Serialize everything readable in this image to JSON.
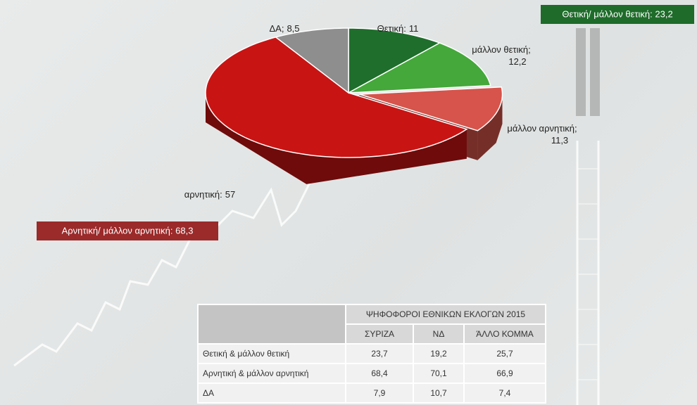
{
  "chart_data": {
    "type": "pie3d",
    "categories": [
      "Θετική:",
      "μάλλον θετική;",
      "μάλλον αρνητική;",
      "αρνητική:",
      "ΔΑ;"
    ],
    "values": [
      11,
      12.2,
      11.3,
      57,
      8.5
    ],
    "value_labels": [
      "11",
      "12,2",
      "11,3",
      "57",
      "8,5"
    ],
    "colors": [
      "#1f6e2c",
      "#44a83a",
      "#d6544b",
      "#c91414",
      "#8e8e8e"
    ],
    "exploded": [
      false,
      false,
      true,
      false,
      false
    ],
    "annotations": [
      "Θετική/ μάλλον θετική: 23,2",
      "Αρνητική/ μάλλον  αρνητική: 68,3"
    ]
  },
  "table": {
    "title": "ΨΗΦΟΦΟΡΟΙ ΕΘΝΙΚΩΝ ΕΚΛΟΓΩΝ 2015",
    "columns": [
      "ΣΥΡΙΖΑ",
      "ΝΔ",
      "ΆΛΛΟ ΚΟΜΜΑ"
    ],
    "rows": [
      [
        "Θετική & μάλλον θετική",
        "23,7",
        "19,2",
        "25,7"
      ],
      [
        "Αρνητική & μάλλον αρνητική",
        "68,4",
        "70,1",
        "66,9"
      ],
      [
        "ΔΑ",
        "7,9",
        "10,7",
        "7,4"
      ]
    ]
  }
}
